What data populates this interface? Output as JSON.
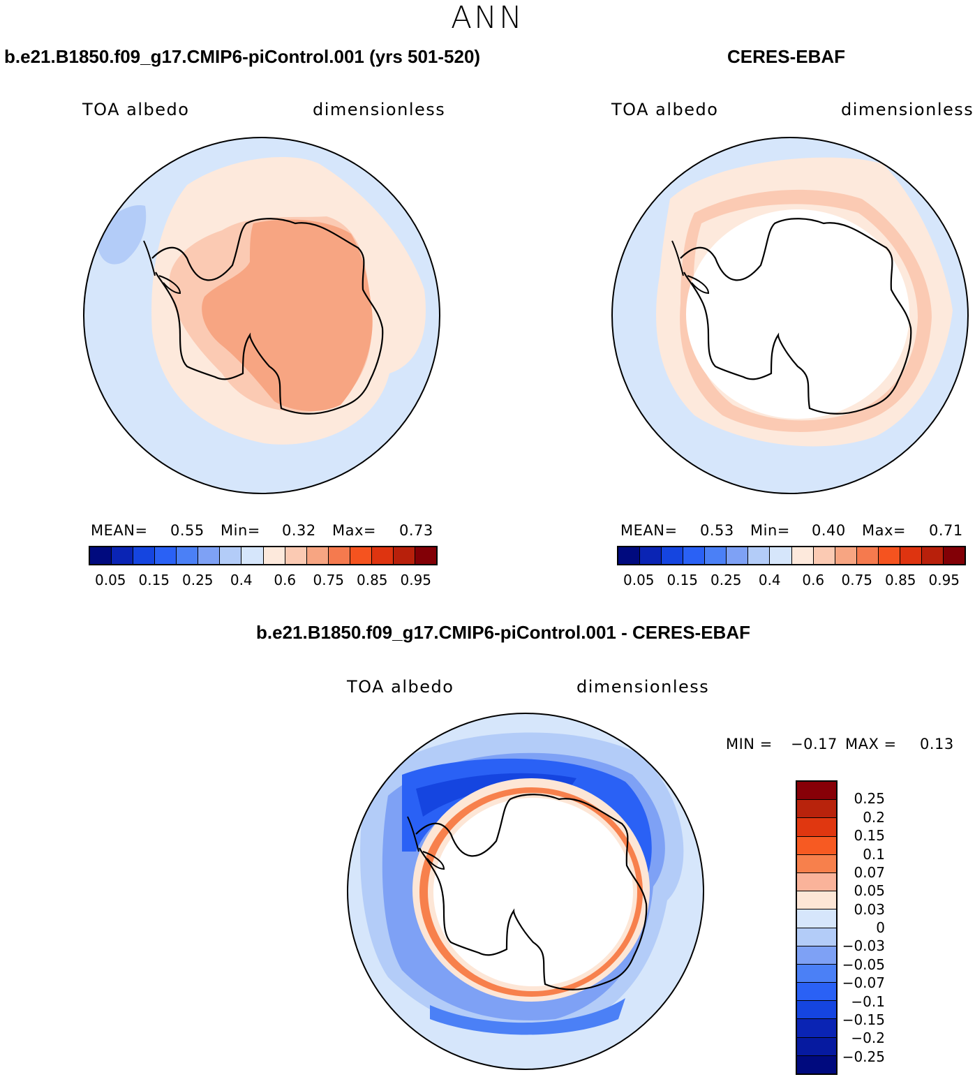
{
  "season": "ANN",
  "colors": {
    "ocean_light": "#d6e6fb",
    "land_outline": "#000000",
    "ten_band_cool": [
      "#000a7e",
      "#0a24b4",
      "#1545e0",
      "#2a61f5",
      "#4b80f6",
      "#7ea1f5",
      "#b3ccf8",
      "#d6e6fb"
    ],
    "ten_band_warm": [
      "#fde9dc",
      "#fbcab3",
      "#f7a582",
      "#f57a4e",
      "#f5531f",
      "#de3410",
      "#b8200b",
      "#820006"
    ],
    "diff_colors": [
      "#870007",
      "#b8230c",
      "#e03710",
      "#f75a22",
      "#f7804c",
      "#fab39a",
      "#fde6d6",
      "#d6e6fb",
      "#b3ccf8",
      "#7ea1f5",
      "#4b80f6",
      "#2a61f5",
      "#1545e0",
      "#0a24b4",
      "#000a7e"
    ]
  },
  "panels": {
    "model": {
      "title": "b.e21.B1850.f09_g17.CMIP6-piControl.001 (yrs 501-520)",
      "left_label": "TOA albedo",
      "right_label": "dimensionless",
      "mean_label": "MEAN=",
      "mean_value": "0.55",
      "min_label": "Min=",
      "min_value": "0.32",
      "max_label": "Max=",
      "max_value": "0.73",
      "mean": 0.55,
      "min": 0.32,
      "max": 0.73
    },
    "obs": {
      "title": "CERES-EBAF",
      "left_label": "TOA albedo",
      "right_label": "dimensionless",
      "mean_label": "MEAN=",
      "mean_value": "0.53",
      "min_label": "Min=",
      "min_value": "0.40",
      "max_label": "Max=",
      "max_value": "0.71",
      "mean": 0.53,
      "min": 0.4,
      "max": 0.71
    },
    "diff": {
      "title": "b.e21.B1850.f09_g17.CMIP6-piControl.001 - CERES-EBAF",
      "left_label": "TOA albedo",
      "right_label": "dimensionless",
      "min_label": "MIN =",
      "min_value": "−0.17",
      "max_label": "MAX =",
      "max_value": "0.13",
      "min": -0.17,
      "max": 0.13
    }
  },
  "colorbar_ticks": [
    "0.05",
    "0.15",
    "0.25",
    "0.4",
    "0.6",
    "0.75",
    "0.85",
    "0.95"
  ],
  "diff_colorbar_ticks": [
    "0.25",
    "0.2",
    "0.15",
    "0.1",
    "0.07",
    "0.05",
    "0.03",
    "0",
    "−0.03",
    "−0.05",
    "−0.07",
    "−0.1",
    "−0.15",
    "−0.2",
    "−0.25"
  ]
}
